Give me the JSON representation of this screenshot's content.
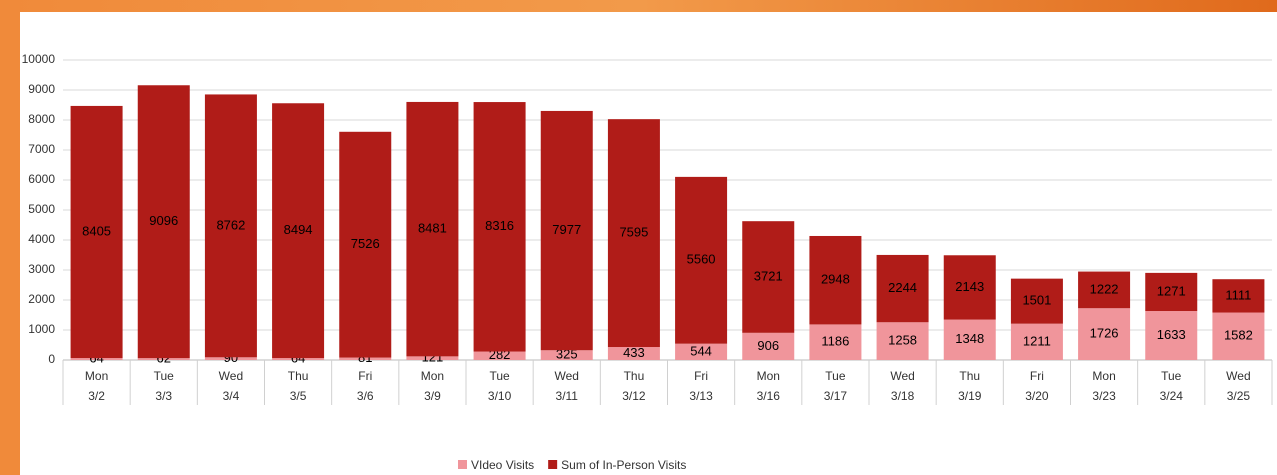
{
  "chart_data": {
    "type": "stacked_bar",
    "weekdays": [
      "Mon",
      "Tue",
      "Wed",
      "Thu",
      "Fri",
      "Mon",
      "Tue",
      "Wed",
      "Thu",
      "Fri",
      "Mon",
      "Tue",
      "Wed",
      "Thu",
      "Fri",
      "Mon",
      "Tue",
      "Wed"
    ],
    "categories": [
      "3/2",
      "3/3",
      "3/4",
      "3/5",
      "3/6",
      "3/9",
      "3/10",
      "3/11",
      "3/12",
      "3/13",
      "3/16",
      "3/17",
      "3/18",
      "3/19",
      "3/20",
      "3/23",
      "3/24",
      "3/25"
    ],
    "series": [
      {
        "name": "VIdeo Visits",
        "color": "#f0959b",
        "values": [
          64,
          62,
          90,
          64,
          81,
          121,
          282,
          325,
          433,
          544,
          906,
          1186,
          1258,
          1348,
          1211,
          1726,
          1633,
          1582
        ]
      },
      {
        "name": "Sum of In-Person Visits",
        "color": "#b01c18",
        "values": [
          8405,
          9096,
          8762,
          8494,
          7526,
          8481,
          8316,
          7977,
          7595,
          5560,
          3721,
          2948,
          2244,
          2143,
          1501,
          1222,
          1271,
          1111
        ]
      }
    ],
    "ylim": [
      0,
      10000
    ],
    "yticks": [
      0,
      1000,
      2000,
      3000,
      4000,
      5000,
      6000,
      7000,
      8000,
      9000,
      10000
    ],
    "grid": true,
    "legend": "bottom"
  }
}
